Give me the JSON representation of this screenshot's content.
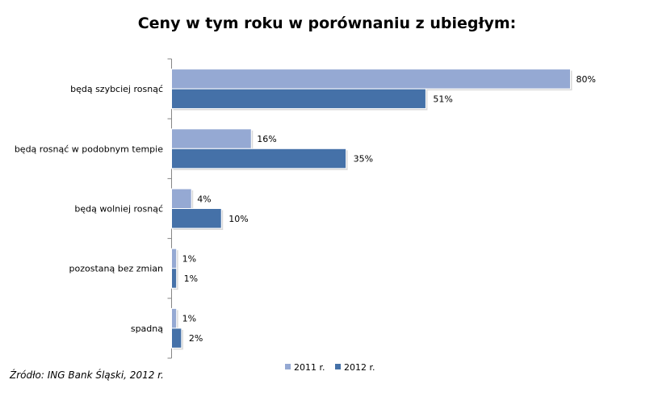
{
  "chart_data": {
    "type": "bar",
    "orientation": "horizontal",
    "title": "Ceny w tym roku w porównaniu z ubiegłym:",
    "categories": [
      "będą szybciej rosnąć",
      "będą rosnąć w podobnym tempie",
      "będą wolniej rosnąć",
      "pozostaną bez zmian",
      "spadną"
    ],
    "series": [
      {
        "name": "2011 r.",
        "color": "#95A9D3",
        "values": [
          80,
          16,
          4,
          1,
          1
        ],
        "labels": [
          "80%",
          "16%",
          "4%",
          "1%",
          "1%"
        ]
      },
      {
        "name": "2012 r.",
        "color": "#4571A8",
        "values": [
          51,
          35,
          10,
          1,
          2
        ],
        "labels": [
          "51%",
          "35%",
          "10%",
          "1%",
          "2%"
        ]
      }
    ],
    "xlim": [
      0,
      80
    ],
    "legend": "bottom",
    "grid": false
  },
  "source": "Źródło: ING Bank Śląski, 2012 r."
}
